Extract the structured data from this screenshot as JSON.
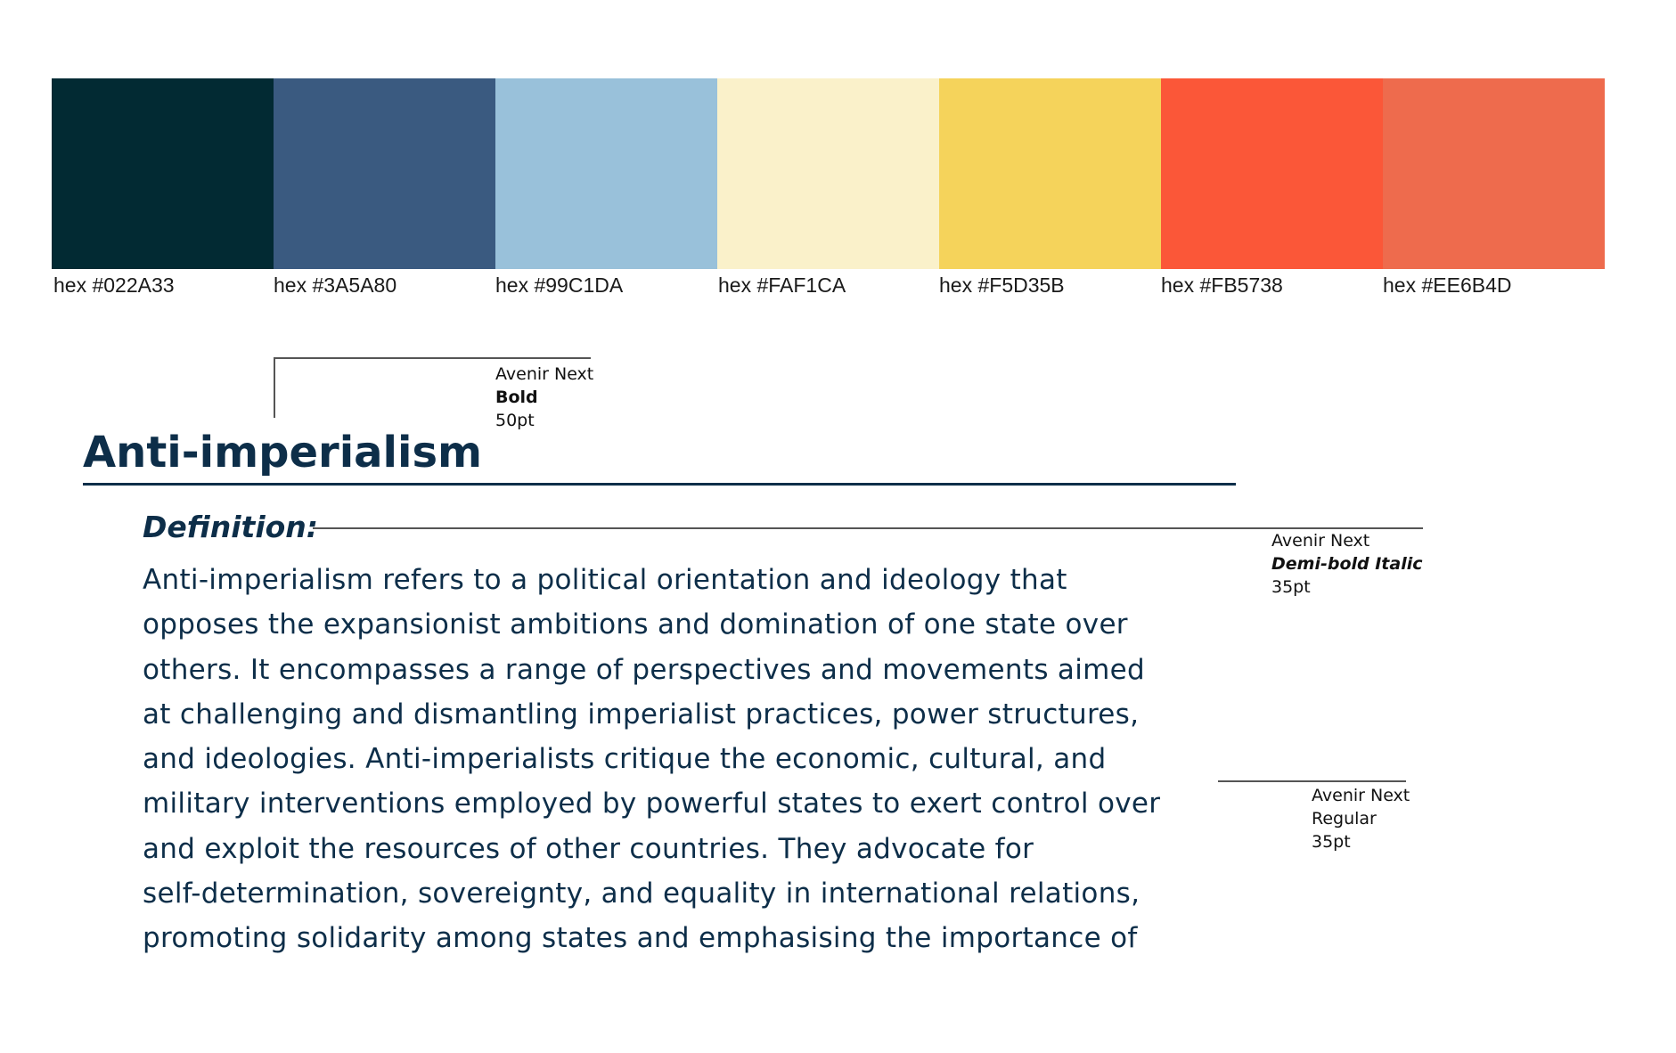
{
  "palette": [
    {
      "color": "#022A33",
      "label": "hex #022A33"
    },
    {
      "color": "#3A5A80",
      "label": "hex #3A5A80"
    },
    {
      "color": "#99C1DA",
      "label": "hex #99C1DA"
    },
    {
      "color": "#FAF1CA",
      "label": "hex #FAF1CA"
    },
    {
      "color": "#F5D35B",
      "label": "hex #F5D35B"
    },
    {
      "color": "#FB5738",
      "label": "hex #FB5738"
    },
    {
      "color": "#EE6B4D",
      "label": "hex #EE6B4D"
    }
  ],
  "annotations": {
    "title_font": {
      "family": "Avenir Next",
      "weight": "Bold",
      "size": "50pt"
    },
    "subhead_font": {
      "family": "Avenir Next",
      "weight": "Demi-bold Italic",
      "size": "35pt"
    },
    "body_font": {
      "family": "Avenir Next",
      "weight": "Regular",
      "size": "35pt"
    }
  },
  "content": {
    "title": "Anti-imperialism",
    "subheading": "Definition:",
    "body_lines": [
      "Anti-imperialism refers to a political orientation and ideology that",
      "opposes the expansionist ambitions and domination of one state over",
      "others. It encompasses a range of perspectives and movements aimed",
      "at challenging and dismantling imperialist practices, power structures,",
      "and ideologies. Anti-imperialists critique the economic, cultural, and",
      "military interventions employed by powerful states to exert control over",
      "and exploit the resources of other countries. They advocate for",
      "self-determination, sovereignty, and equality in international relations,",
      "promoting solidarity among states and emphasising the importance of"
    ]
  }
}
